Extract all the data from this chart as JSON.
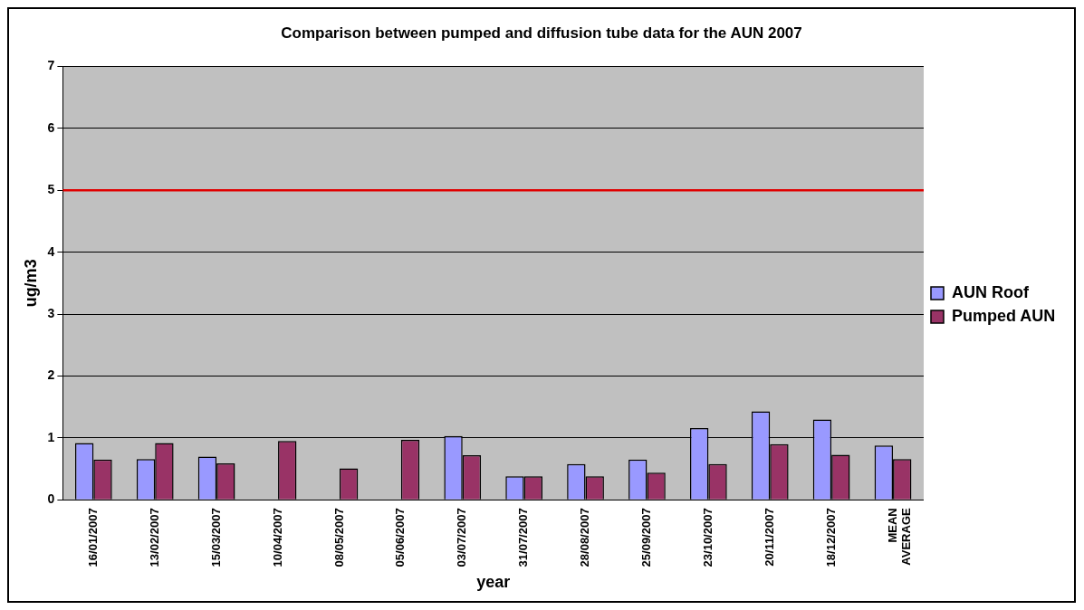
{
  "chart_data": {
    "type": "bar",
    "title": "Comparison between pumped and diffusion tube data for the AUN 2007",
    "xlabel": "year",
    "ylabel": "ug/m3",
    "categories": [
      "16/01/2007",
      "13/02/2007",
      "15/03/2007",
      "10/04/2007",
      "08/05/2007",
      "05/06/2007",
      "03/07/2007",
      "31/07/2007",
      "28/08/2007",
      "25/09/2007",
      "23/10/2007",
      "20/11/2007",
      "18/12/2007",
      "MEAN AVERAGE"
    ],
    "series": [
      {
        "name": "AUN Roof",
        "color": "#9999ff",
        "values": [
          0.92,
          0.66,
          0.7,
          null,
          null,
          null,
          1.03,
          0.38,
          0.58,
          0.65,
          1.16,
          1.43,
          1.3,
          0.88
        ]
      },
      {
        "name": "Pumped AUN",
        "color": "#993366",
        "values": [
          0.65,
          0.92,
          0.59,
          0.95,
          0.51,
          0.97,
          0.72,
          0.38,
          0.38,
          0.44,
          0.58,
          0.9,
          0.73,
          0.66
        ]
      }
    ],
    "ylim": [
      0,
      7
    ],
    "yticks": [
      0,
      1,
      2,
      3,
      4,
      5,
      6,
      7
    ],
    "grid": "y",
    "legend": "right",
    "ref_lines": [
      {
        "axis": "y",
        "value": 5,
        "color": "#e00000"
      }
    ]
  }
}
